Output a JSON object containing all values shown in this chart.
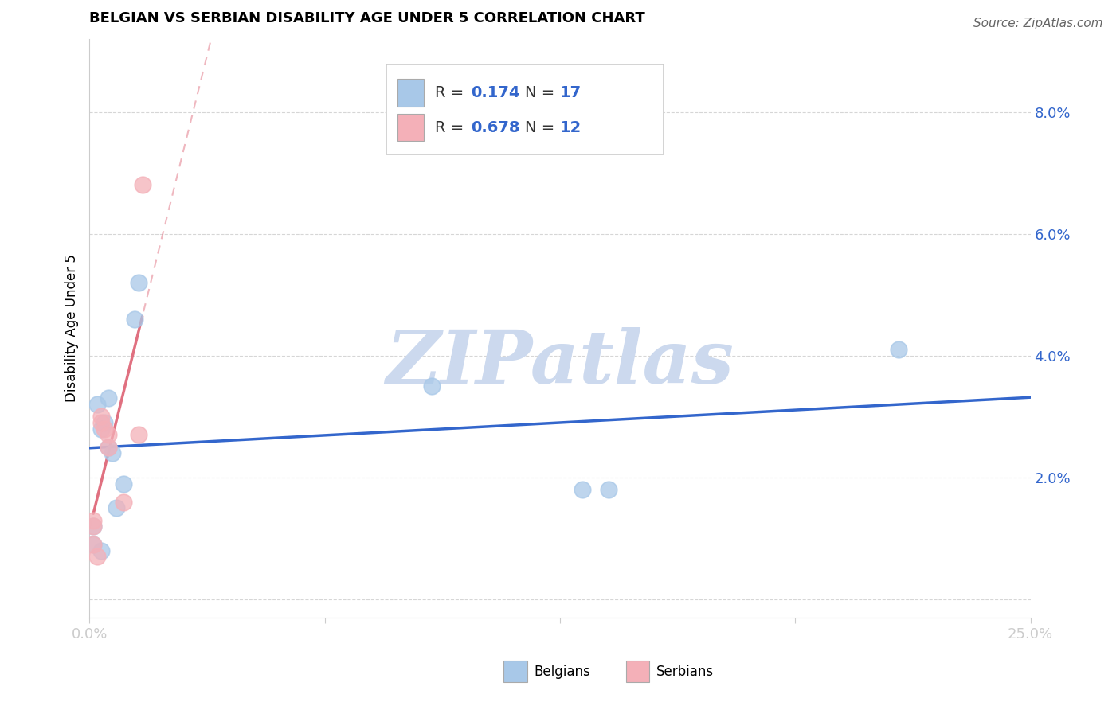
{
  "title": "BELGIAN VS SERBIAN DISABILITY AGE UNDER 5 CORRELATION CHART",
  "source": "Source: ZipAtlas.com",
  "ylabel": "Disability Age Under 5",
  "ytick_values": [
    0.0,
    0.02,
    0.04,
    0.06,
    0.08
  ],
  "ytick_labels": [
    "",
    "2.0%",
    "4.0%",
    "6.0%",
    "8.0%"
  ],
  "xtick_values": [
    0.0,
    0.0625,
    0.125,
    0.1875,
    0.25
  ],
  "xtick_labels": [
    "0.0%",
    "",
    "",
    "",
    "25.0%"
  ],
  "xlim": [
    0.0,
    0.25
  ],
  "ylim": [
    -0.003,
    0.092
  ],
  "belgians_x": [
    0.001,
    0.001,
    0.002,
    0.003,
    0.003,
    0.004,
    0.005,
    0.005,
    0.006,
    0.007,
    0.009,
    0.012,
    0.013,
    0.091,
    0.131,
    0.138,
    0.215
  ],
  "belgians_y": [
    0.009,
    0.012,
    0.032,
    0.008,
    0.028,
    0.029,
    0.033,
    0.025,
    0.024,
    0.015,
    0.019,
    0.046,
    0.052,
    0.035,
    0.018,
    0.018,
    0.041
  ],
  "serbians_x": [
    0.001,
    0.001,
    0.001,
    0.002,
    0.003,
    0.003,
    0.004,
    0.005,
    0.005,
    0.009,
    0.013,
    0.014
  ],
  "serbians_y": [
    0.009,
    0.012,
    0.013,
    0.007,
    0.029,
    0.03,
    0.028,
    0.027,
    0.025,
    0.016,
    0.027,
    0.068
  ],
  "belgian_R": 0.174,
  "belgian_N": 17,
  "serbian_R": 0.678,
  "serbian_N": 12,
  "belgian_color": "#a8c8e8",
  "serbian_color": "#f4b0b8",
  "belgian_line_color": "#3366cc",
  "serbian_line_color": "#e07080",
  "watermark_text": "ZIPatlas",
  "watermark_color": "#ccd9ee",
  "grid_color": "#cccccc",
  "spine_color": "#cccccc",
  "text_blue": "#3366cc",
  "text_dark": "#333333",
  "source_color": "#666666"
}
